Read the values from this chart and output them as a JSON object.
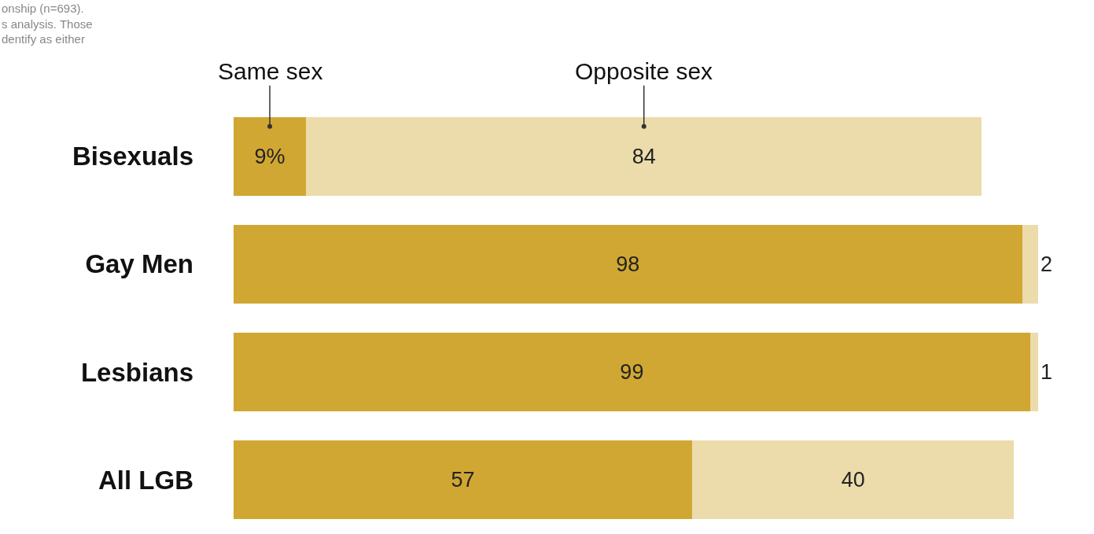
{
  "chart_data": {
    "type": "bar",
    "orientation": "horizontal",
    "stacked": true,
    "categories": [
      "Bisexuals",
      "Gay Men",
      "Lesbians",
      "All LGB"
    ],
    "series": [
      {
        "name": "Same sex",
        "color": "#d1a733",
        "values": [
          9,
          98,
          99,
          57
        ],
        "value_labels": [
          "9%",
          "98",
          "99",
          "57"
        ]
      },
      {
        "name": "Opposite sex",
        "color": "#ecdcab",
        "values": [
          84,
          2,
          1,
          40
        ],
        "value_labels": [
          "84",
          "2",
          "1",
          "40"
        ]
      }
    ],
    "xlim": [
      0,
      100
    ],
    "tick_labels": "y",
    "grid": false,
    "legend": false,
    "annotations": [
      "onship (n=693).\ns analysis. Those\ndentify as either"
    ]
  }
}
